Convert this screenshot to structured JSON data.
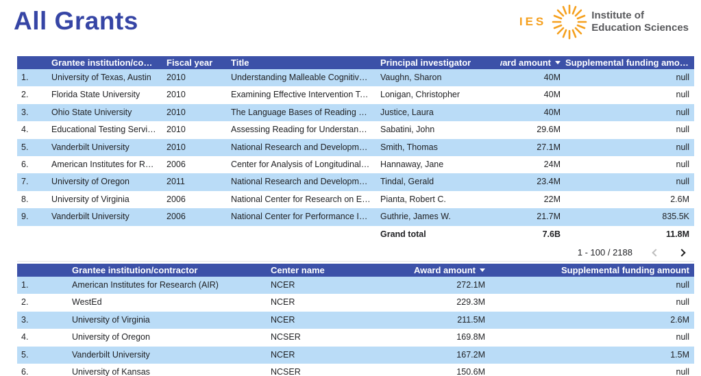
{
  "page": {
    "title": "All Grants"
  },
  "logo": {
    "acronym": "IES",
    "name_line1": "Institute of",
    "name_line2": "Education Sciences",
    "orange": "#f5a01e",
    "gray": "#57585b"
  },
  "colors": {
    "header_bg": "#3c51a8",
    "alt_row_blue": "#badcf7",
    "title_blue": "#3645a5"
  },
  "grants_table": {
    "headers": [
      "Grantee institution/contra...",
      "Fiscal year",
      "Title",
      "Principal investigator",
      "Award amount",
      "Supplemental funding amount"
    ],
    "sort": {
      "column": "Award amount",
      "direction": "desc"
    },
    "rows": [
      [
        "1.",
        "University of Texas, Austin",
        "2010",
        "Understanding Malleable Cognitive Proce...",
        "Vaughn, Sharon",
        "40M",
        "null"
      ],
      [
        "2.",
        "Florida State University",
        "2010",
        "Examining Effective Intervention Targets, ...",
        "Lonigan, Christopher",
        "40M",
        "null"
      ],
      [
        "3.",
        "Ohio State University",
        "2010",
        "The Language Bases of Reading Compreh...",
        "Justice, Laura",
        "40M",
        "null"
      ],
      [
        "4.",
        "Educational Testing Service (ET...",
        "2010",
        "Assessing Reading for Understanding: A T...",
        "Sabatini, John",
        "29.6M",
        "null"
      ],
      [
        "5.",
        "Vanderbilt University",
        "2010",
        "National Research and Development Cent...",
        "Smith, Thomas",
        "27.1M",
        "null"
      ],
      [
        "6.",
        "American Institutes for Researc...",
        "2006",
        "Center for Analysis of Longitudinal Data in...",
        "Hannaway, Jane",
        "24M",
        "null"
      ],
      [
        "7.",
        "University of Oregon",
        "2011",
        "National Research and Development Cent...",
        "Tindal, Gerald",
        "23.4M",
        "null"
      ],
      [
        "8.",
        "University of Virginia",
        "2006",
        "National Center for Research on Early Chil...",
        "Pianta, Robert C.",
        "22M",
        "2.6M"
      ],
      [
        "9.",
        "Vanderbilt University",
        "2006",
        "National Center for Performance Incentive...",
        "Guthrie, James W.",
        "21.7M",
        "835.5K"
      ]
    ],
    "grand_total": {
      "label": "Grand total",
      "award_amount": "7.6B",
      "supplemental_amount": "11.8M"
    },
    "pagination": {
      "range": "1 - 100 / 2188"
    }
  },
  "centers_table": {
    "headers": [
      "Grantee institution/contractor",
      "Center name",
      "Award amount",
      "Supplemental funding amount"
    ],
    "sort": {
      "column": "Award amount",
      "direction": "desc"
    },
    "rows": [
      [
        "1.",
        "American Institutes for Research (AIR)",
        "NCER",
        "272.1M",
        "null"
      ],
      [
        "2.",
        "WestEd",
        "NCER",
        "229.3M",
        "null"
      ],
      [
        "3.",
        "University of Virginia",
        "NCER",
        "211.5M",
        "2.6M"
      ],
      [
        "4.",
        "University of Oregon",
        "NCSER",
        "169.8M",
        "null"
      ],
      [
        "5.",
        "Vanderbilt University",
        "NCER",
        "167.2M",
        "1.5M"
      ],
      [
        "6.",
        "University of Kansas",
        "NCSER",
        "150.6M",
        "null"
      ]
    ]
  }
}
